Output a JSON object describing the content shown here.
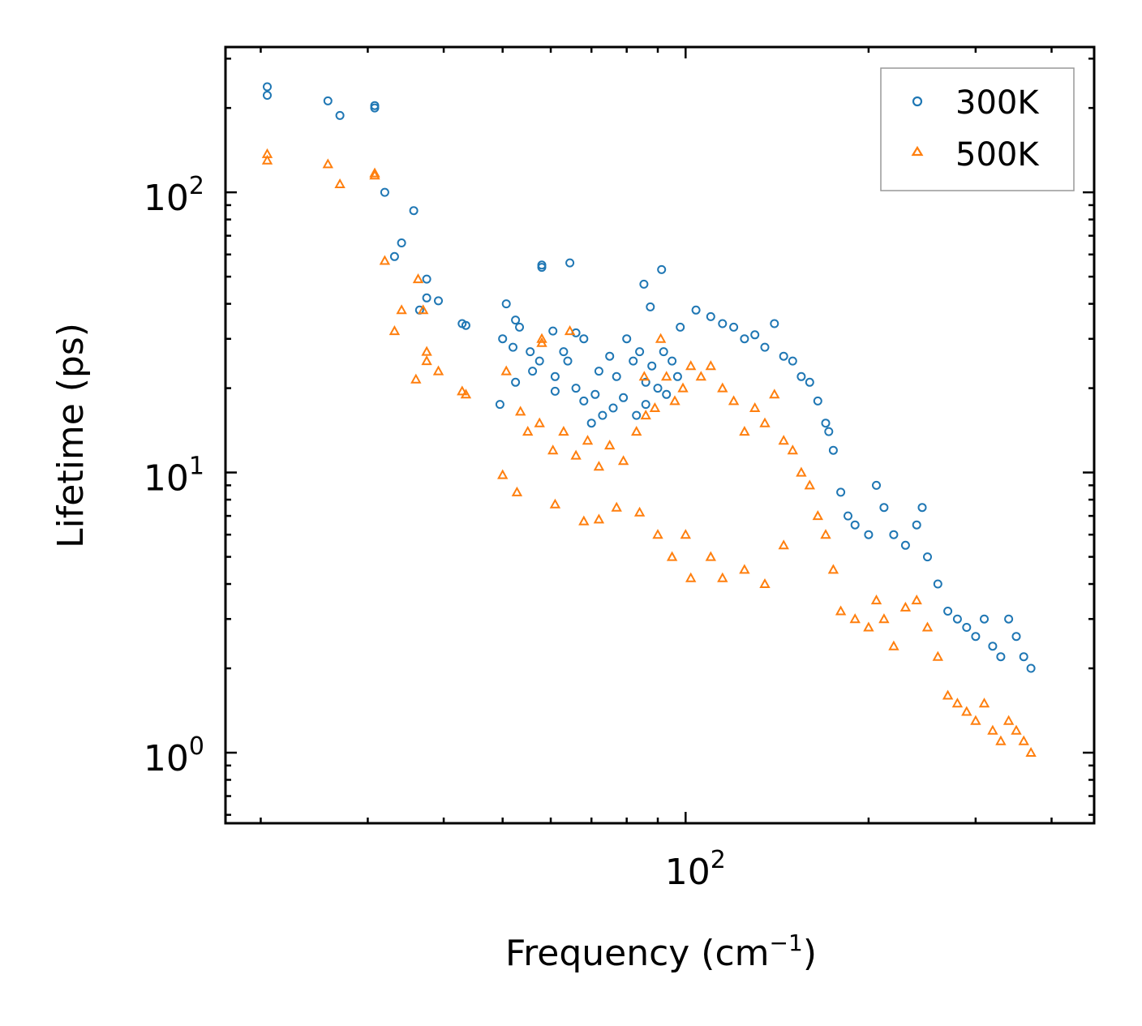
{
  "chart_data": {
    "type": "scatter",
    "title": "",
    "xlabel": "Frequency (cm",
    "xlabel_sup": "−1",
    "xlabel_close": ")",
    "ylabel": "Lifetime (ps)",
    "xscale": "log",
    "yscale": "log",
    "xlim": [
      17.5,
      470
    ],
    "ylim": [
      0.56,
      330
    ],
    "x_ticks": [
      {
        "value": 100,
        "base": "10",
        "exp": "2"
      }
    ],
    "y_ticks": [
      {
        "value": 1,
        "base": "10",
        "exp": "0"
      },
      {
        "value": 10,
        "base": "10",
        "exp": "1"
      },
      {
        "value": 100,
        "base": "10",
        "exp": "2"
      }
    ],
    "legend_position": "top-right",
    "series": [
      {
        "name": "300K",
        "marker": "circle",
        "color": "#1f77b4",
        "points": [
          [
            20.5,
            238
          ],
          [
            20.5,
            222
          ],
          [
            25.8,
            212
          ],
          [
            27.0,
            188
          ],
          [
            30.8,
            204
          ],
          [
            30.8,
            200
          ],
          [
            32.0,
            100
          ],
          [
            35.7,
            86
          ],
          [
            34.1,
            66
          ],
          [
            33.2,
            59
          ],
          [
            36.5,
            38
          ],
          [
            37.5,
            49
          ],
          [
            37.5,
            42
          ],
          [
            39.2,
            41
          ],
          [
            42.9,
            34
          ],
          [
            43.5,
            33.5
          ],
          [
            50.7,
            40
          ],
          [
            52.5,
            35
          ],
          [
            53.3,
            33
          ],
          [
            58.0,
            54
          ],
          [
            58.0,
            55
          ],
          [
            64.5,
            56
          ],
          [
            85.4,
            47
          ],
          [
            87.5,
            39
          ],
          [
            91.3,
            53
          ],
          [
            50.0,
            30
          ],
          [
            52.0,
            28
          ],
          [
            55.5,
            27
          ],
          [
            60.5,
            32
          ],
          [
            63.0,
            27
          ],
          [
            66.0,
            31.5
          ],
          [
            68.0,
            30
          ],
          [
            49.5,
            17.5
          ],
          [
            52.5,
            21
          ],
          [
            56.0,
            23
          ],
          [
            57.5,
            25
          ],
          [
            61.0,
            22
          ],
          [
            61.0,
            19.5
          ],
          [
            64.0,
            25
          ],
          [
            66.0,
            20
          ],
          [
            68.0,
            18
          ],
          [
            71.0,
            19
          ],
          [
            72.0,
            23
          ],
          [
            75.0,
            26
          ],
          [
            77.0,
            22
          ],
          [
            80.0,
            30
          ],
          [
            82.0,
            25
          ],
          [
            84.0,
            27
          ],
          [
            86.0,
            21
          ],
          [
            88.0,
            24
          ],
          [
            92.0,
            27
          ],
          [
            95.0,
            25
          ],
          [
            98.0,
            33
          ],
          [
            70.0,
            15
          ],
          [
            73.0,
            16
          ],
          [
            76.0,
            17
          ],
          [
            79.0,
            18.5
          ],
          [
            83.0,
            16
          ],
          [
            86.0,
            17.5
          ],
          [
            90.0,
            20
          ],
          [
            93.0,
            19
          ],
          [
            97.0,
            22
          ],
          [
            104.0,
            38
          ],
          [
            110.0,
            36
          ],
          [
            115.0,
            34
          ],
          [
            120.0,
            33
          ],
          [
            125.0,
            30
          ],
          [
            130.0,
            31
          ],
          [
            135.0,
            28
          ],
          [
            140.0,
            34
          ],
          [
            145.0,
            26
          ],
          [
            150.0,
            25
          ],
          [
            155.0,
            22
          ],
          [
            160.0,
            21
          ],
          [
            165.0,
            18
          ],
          [
            170.0,
            15
          ],
          [
            172.0,
            14
          ],
          [
            175.0,
            12
          ],
          [
            180.0,
            8.5
          ],
          [
            185.0,
            7
          ],
          [
            190.0,
            6.5
          ],
          [
            200.0,
            6
          ],
          [
            206.0,
            9
          ],
          [
            212.0,
            7.5
          ],
          [
            220.0,
            6
          ],
          [
            230.0,
            5.5
          ],
          [
            240.0,
            6.5
          ],
          [
            245.0,
            7.5
          ],
          [
            250.0,
            5
          ],
          [
            260.0,
            4
          ],
          [
            270.0,
            3.2
          ],
          [
            280.0,
            3
          ],
          [
            290.0,
            2.8
          ],
          [
            300.0,
            2.6
          ],
          [
            310.0,
            3
          ],
          [
            320.0,
            2.4
          ],
          [
            330.0,
            2.2
          ],
          [
            340.0,
            3
          ],
          [
            350.0,
            2.6
          ],
          [
            360.0,
            2.2
          ],
          [
            370.0,
            2
          ]
        ]
      },
      {
        "name": "500K",
        "marker": "triangle",
        "color": "#ff7f0e",
        "points": [
          [
            20.5,
            137
          ],
          [
            20.5,
            130
          ],
          [
            25.8,
            126
          ],
          [
            27.0,
            107
          ],
          [
            30.8,
            117
          ],
          [
            30.8,
            115
          ],
          [
            32.0,
            57
          ],
          [
            36.3,
            49
          ],
          [
            37.0,
            38
          ],
          [
            33.2,
            32
          ],
          [
            34.1,
            38
          ],
          [
            37.5,
            27
          ],
          [
            37.5,
            25
          ],
          [
            39.2,
            23
          ],
          [
            42.9,
            19.5
          ],
          [
            43.5,
            19
          ],
          [
            36.0,
            21.5
          ],
          [
            50.0,
            9.8
          ],
          [
            52.8,
            8.5
          ],
          [
            50.7,
            23
          ],
          [
            58.0,
            30
          ],
          [
            58.0,
            29
          ],
          [
            64.5,
            32
          ],
          [
            61.0,
            7.7
          ],
          [
            68.0,
            6.7
          ],
          [
            72.0,
            6.8
          ],
          [
            77.0,
            7.5
          ],
          [
            84.0,
            7.2
          ],
          [
            53.5,
            16.5
          ],
          [
            55.0,
            14
          ],
          [
            57.5,
            15
          ],
          [
            60.5,
            12
          ],
          [
            63.0,
            14
          ],
          [
            66.0,
            11.5
          ],
          [
            69.0,
            13
          ],
          [
            72.0,
            10.5
          ],
          [
            75.0,
            12.5
          ],
          [
            79.0,
            11
          ],
          [
            83.0,
            14
          ],
          [
            86.0,
            16
          ],
          [
            89.0,
            17
          ],
          [
            93.0,
            22
          ],
          [
            96.0,
            18
          ],
          [
            99.0,
            20
          ],
          [
            85.5,
            22
          ],
          [
            91.0,
            30
          ],
          [
            102.0,
            24
          ],
          [
            106.0,
            22
          ],
          [
            110.0,
            24
          ],
          [
            115.0,
            20
          ],
          [
            120.0,
            18
          ],
          [
            125.0,
            14
          ],
          [
            130.0,
            17
          ],
          [
            135.0,
            15
          ],
          [
            140.0,
            19
          ],
          [
            145.0,
            13
          ],
          [
            150.0,
            12
          ],
          [
            155.0,
            10
          ],
          [
            160.0,
            9
          ],
          [
            165.0,
            7
          ],
          [
            170.0,
            6
          ],
          [
            175.0,
            4.5
          ],
          [
            180.0,
            3.2
          ],
          [
            190.0,
            3
          ],
          [
            200.0,
            2.8
          ],
          [
            206.0,
            3.5
          ],
          [
            212.0,
            3
          ],
          [
            220.0,
            2.4
          ],
          [
            230.0,
            3.3
          ],
          [
            240.0,
            3.5
          ],
          [
            250.0,
            2.8
          ],
          [
            260.0,
            2.2
          ],
          [
            270.0,
            1.6
          ],
          [
            280.0,
            1.5
          ],
          [
            290.0,
            1.4
          ],
          [
            300.0,
            1.3
          ],
          [
            310.0,
            1.5
          ],
          [
            320.0,
            1.2
          ],
          [
            330.0,
            1.1
          ],
          [
            340.0,
            1.3
          ],
          [
            350.0,
            1.2
          ],
          [
            360.0,
            1.1
          ],
          [
            370.0,
            1.0
          ],
          [
            100.0,
            6
          ],
          [
            110.0,
            5
          ],
          [
            115.0,
            4.2
          ],
          [
            125.0,
            4.5
          ],
          [
            135.0,
            4
          ],
          [
            145.0,
            5.5
          ],
          [
            90.0,
            6
          ],
          [
            95.0,
            5
          ],
          [
            102.0,
            4.2
          ]
        ]
      }
    ]
  }
}
